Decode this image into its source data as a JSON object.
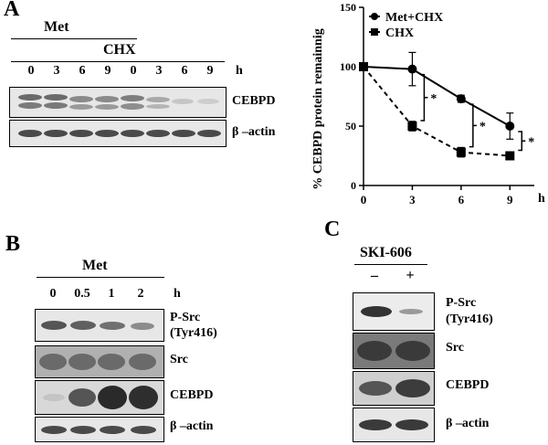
{
  "panelA": {
    "letter": "A",
    "met_label": "Met",
    "chx_label": "CHX",
    "time_unit": "h",
    "lanes": [
      "0",
      "3",
      "6",
      "9",
      "0",
      "3",
      "6",
      "9"
    ],
    "protein_labels": [
      "CEBPD",
      "β –actin"
    ]
  },
  "chart_data": {
    "type": "line",
    "x": [
      0,
      3,
      6,
      9
    ],
    "series": [
      {
        "name": "Met+CHX",
        "values": [
          100,
          98,
          73,
          50
        ],
        "errors": [
          0,
          14,
          3,
          11
        ],
        "style": "solid",
        "marker": "circle"
      },
      {
        "name": "CHX",
        "values": [
          100,
          50,
          28,
          25
        ],
        "errors": [
          0,
          4,
          4,
          2
        ],
        "style": "dashed",
        "marker": "square"
      }
    ],
    "xlabel": "h",
    "ylabel": "% CEBPD protein remainnig",
    "xticks": [
      "0",
      "3",
      "6",
      "9"
    ],
    "yticks": [
      "0",
      "50",
      "100",
      "150"
    ],
    "ylim": [
      0,
      150
    ],
    "xlim": [
      0,
      10.5
    ],
    "legend": "top",
    "significance": [
      "*",
      "*",
      "*"
    ]
  },
  "panelB": {
    "letter": "B",
    "met_label": "Met",
    "time_unit": "h",
    "lanes": [
      "0",
      "0.5",
      "1",
      "2"
    ],
    "protein_labels": [
      "P-Src",
      "(Tyr416)",
      "Src",
      "CEBPD",
      "β –actin"
    ]
  },
  "panelC": {
    "letter": "C",
    "treatment_label": "SKI-606",
    "lanes": [
      "–",
      "+"
    ],
    "protein_labels": [
      "P-Src",
      "(Tyr416)",
      "Src",
      "CEBPD",
      "β –actin"
    ]
  }
}
